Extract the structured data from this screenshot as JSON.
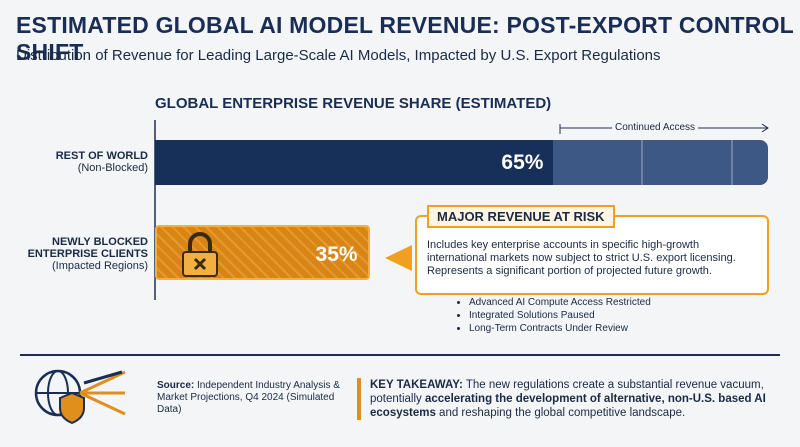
{
  "chart_data": {
    "type": "bar",
    "orientation": "horizontal",
    "title": "ESTIMATED GLOBAL AI MODEL REVENUE: POST-EXPORT CONTROL SHIFT",
    "subtitle": "Distribution of Revenue for Leading Large-Scale AI Models, Impacted by U.S. Export Regulations",
    "chart_title": "GLOBAL ENTERPRISE REVENUE SHARE (ESTIMATED)",
    "categories": [
      "REST OF WORLD",
      "NEWLY BLOCKED ENTERPRISE CLIENTS"
    ],
    "category_notes": [
      "(Non-Blocked)",
      "(Impacted Regions)"
    ],
    "values": [
      65,
      35
    ],
    "value_labels": [
      "65%",
      "35%"
    ],
    "colors": [
      "#17305a",
      "#e08e1c"
    ],
    "xlim": [
      0,
      100
    ],
    "annotation": "Continued Access",
    "callout": {
      "title": "MAJOR REVENUE AT RISK",
      "body": "Includes key enterprise accounts in specific high-growth international markets now subject to strict U.S. export licensing. Represents a significant portion of projected future growth.",
      "bullets": [
        "Advanced AI Compute Access Restricted",
        "Integrated Solutions Paused",
        "Long-Term Contracts Under Review"
      ]
    },
    "source": {
      "label": "Source:",
      "text": "Independent Industry Analysis & Market Projections, Q4 2024 (Simulated Data)"
    },
    "takeaway": {
      "label": "KEY TAKEAWAY:",
      "parts": [
        "The new regulations create a substantial revenue vacuum, potentially ",
        "accelerating the development of alternative, non-U.S. based AI ecosystems",
        " and reshaping the global competitive landscape."
      ]
    }
  }
}
